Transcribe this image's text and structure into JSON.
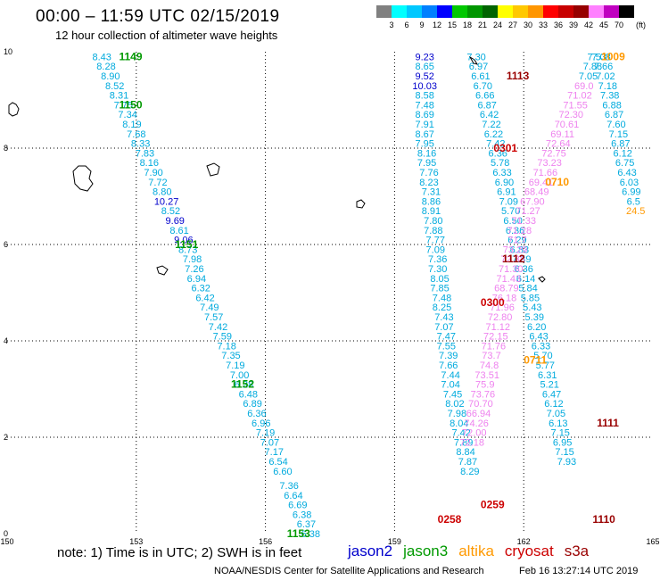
{
  "title": "00:00 – 11:59 UTC 02/15/2019",
  "subtitle": "12 hour collection of altimeter wave heights",
  "colorbar": {
    "unit": "(ft)",
    "ticks": [
      "3",
      "6",
      "9",
      "12",
      "15",
      "18",
      "21",
      "24",
      "27",
      "30",
      "33",
      "36",
      "39",
      "42",
      "45",
      "70"
    ],
    "colors": [
      "#808080",
      "#00ffff",
      "#00c8ff",
      "#0080ff",
      "#0000ff",
      "#00c800",
      "#009600",
      "#006400",
      "#ffff00",
      "#ffc800",
      "#ff9600",
      "#ff0000",
      "#c80000",
      "#960000",
      "#ff80ff",
      "#c000c0",
      "#000000"
    ]
  },
  "note": "note:  1) Time is in UTC;  2) SWH is in feet",
  "credit": "NOAA/NESDIS Center for Satellite Applications and Research",
  "issued": "Feb 16 13:27:14 UTC 2019",
  "legend": [
    {
      "name": "jason2",
      "color": "#0000cc"
    },
    {
      "name": "jason3",
      "color": "#009900"
    },
    {
      "name": "altika",
      "color": "#ff9900"
    },
    {
      "name": "cryosat",
      "color": "#cc0000"
    },
    {
      "name": "s3a",
      "color": "#990000"
    }
  ],
  "axes": {
    "x_ticks": [
      "150",
      "153",
      "156",
      "159",
      "162",
      "165"
    ],
    "y_ticks": [
      "0",
      "2",
      "4",
      "6",
      "8",
      "10"
    ]
  },
  "chart_data": {
    "type": "scatter",
    "xlim": [
      150,
      165
    ],
    "ylim": [
      0,
      10
    ],
    "grid": true,
    "tracks": [
      {
        "points": [
          [
            152.2,
            9.9,
            "8.43"
          ],
          [
            152.3,
            9.7,
            "8.28"
          ],
          [
            152.4,
            9.5,
            "8.90"
          ],
          [
            152.5,
            9.3,
            "8.52"
          ],
          [
            152.6,
            9.1,
            "8.31"
          ],
          [
            152.7,
            8.9,
            "7.75"
          ],
          [
            152.8,
            8.7,
            "7.34"
          ],
          [
            152.9,
            8.5,
            "8.19"
          ],
          [
            153.0,
            8.3,
            "7.68"
          ],
          [
            153.1,
            8.1,
            "8.33"
          ],
          [
            153.2,
            7.9,
            "7.83"
          ],
          [
            153.3,
            7.7,
            "8.16"
          ],
          [
            153.4,
            7.5,
            "7.90"
          ],
          [
            153.5,
            7.3,
            "7.72"
          ],
          [
            153.6,
            7.1,
            "8.80"
          ],
          [
            153.7,
            6.9,
            "10.27"
          ],
          [
            153.8,
            6.7,
            "8.52"
          ],
          [
            153.9,
            6.5,
            "9.69"
          ],
          [
            154.0,
            6.3,
            "8.61"
          ],
          [
            154.1,
            6.1,
            "9.06"
          ],
          [
            154.2,
            5.9,
            "8.73"
          ],
          [
            154.3,
            5.7,
            "7.98"
          ],
          [
            154.35,
            5.5,
            "7.26"
          ],
          [
            154.4,
            5.3,
            "6.94"
          ],
          [
            154.5,
            5.1,
            "6.32"
          ],
          [
            154.6,
            4.9,
            "6.42"
          ],
          [
            154.7,
            4.7,
            "7.49"
          ],
          [
            154.8,
            4.5,
            "7.57"
          ],
          [
            154.9,
            4.3,
            "7.42"
          ],
          [
            155.0,
            4.1,
            "7.59"
          ],
          [
            155.1,
            3.9,
            "7.18"
          ],
          [
            155.2,
            3.7,
            "7.35"
          ],
          [
            155.3,
            3.5,
            "7.19"
          ],
          [
            155.4,
            3.3,
            "7.00"
          ],
          [
            155.5,
            3.1,
            "6.28"
          ],
          [
            155.6,
            2.9,
            "6.48"
          ],
          [
            155.7,
            2.7,
            "6.89"
          ],
          [
            155.8,
            2.5,
            "6.36"
          ],
          [
            155.9,
            2.3,
            "6.96"
          ],
          [
            156.0,
            2.1,
            "7.19"
          ],
          [
            156.1,
            1.9,
            "7.07"
          ],
          [
            156.2,
            1.7,
            "7.17"
          ],
          [
            156.3,
            1.5,
            "6.54"
          ],
          [
            156.4,
            1.3,
            "6.60"
          ],
          [
            156.55,
            1.0,
            "7.36"
          ],
          [
            156.65,
            0.8,
            "6.64"
          ],
          [
            156.75,
            0.6,
            "6.69"
          ],
          [
            156.85,
            0.4,
            "6.38"
          ],
          [
            156.95,
            0.2,
            "6.37"
          ],
          [
            157.05,
            0.0,
            "6.38"
          ]
        ]
      },
      {
        "points": [
          [
            159.7,
            9.9,
            "9.23"
          ],
          [
            159.7,
            9.7,
            "8.65"
          ],
          [
            159.7,
            9.5,
            "9.52"
          ],
          [
            159.7,
            9.3,
            "10.03"
          ],
          [
            159.7,
            9.1,
            "8.58"
          ],
          [
            159.7,
            8.9,
            "7.48"
          ],
          [
            159.7,
            8.7,
            "8.69"
          ],
          [
            159.7,
            8.5,
            "7.91"
          ],
          [
            159.7,
            8.3,
            "8.67"
          ],
          [
            159.7,
            8.1,
            "7.95"
          ],
          [
            159.75,
            7.9,
            "8.16"
          ],
          [
            159.75,
            7.7,
            "7.95"
          ],
          [
            159.8,
            7.5,
            "7.76"
          ],
          [
            159.8,
            7.3,
            "8.23"
          ],
          [
            159.85,
            7.1,
            "7.31"
          ],
          [
            159.85,
            6.9,
            "8.86"
          ],
          [
            159.85,
            6.7,
            "8.91"
          ],
          [
            159.9,
            6.5,
            "7.80"
          ],
          [
            159.9,
            6.3,
            "7.88"
          ],
          [
            159.95,
            6.1,
            "7.77"
          ],
          [
            159.95,
            5.9,
            "7.09"
          ],
          [
            160.0,
            5.7,
            "7.36"
          ],
          [
            160.0,
            5.5,
            "7.30"
          ],
          [
            160.05,
            5.3,
            "8.05"
          ],
          [
            160.05,
            5.1,
            "7.85"
          ],
          [
            160.1,
            4.9,
            "7.48"
          ],
          [
            160.1,
            4.7,
            "8.25"
          ],
          [
            160.15,
            4.5,
            "7.43"
          ],
          [
            160.15,
            4.3,
            "7.07"
          ],
          [
            160.2,
            4.1,
            "7.47"
          ],
          [
            160.2,
            3.9,
            "7.55"
          ],
          [
            160.25,
            3.7,
            "7.39"
          ],
          [
            160.25,
            3.5,
            "7.66"
          ],
          [
            160.3,
            3.3,
            "7.44"
          ],
          [
            160.3,
            3.1,
            "7.04"
          ],
          [
            160.35,
            2.9,
            "7.45"
          ],
          [
            160.4,
            2.7,
            "8.02"
          ],
          [
            160.45,
            2.5,
            "7.98"
          ],
          [
            160.5,
            2.3,
            "8.04"
          ],
          [
            160.55,
            2.1,
            "7.42"
          ],
          [
            160.6,
            1.9,
            "7.89"
          ],
          [
            160.65,
            1.7,
            "8.84"
          ],
          [
            160.7,
            1.5,
            "7.87"
          ],
          [
            160.75,
            1.3,
            "8.29"
          ]
        ]
      },
      {
        "points": [
          [
            160.9,
            9.9,
            "7.30"
          ],
          [
            160.95,
            9.7,
            "6.97"
          ],
          [
            161.0,
            9.5,
            "6.61"
          ],
          [
            161.05,
            9.3,
            "6.70"
          ],
          [
            161.1,
            9.1,
            "6.66"
          ],
          [
            161.15,
            8.9,
            "6.87"
          ],
          [
            161.2,
            8.7,
            "6.42"
          ],
          [
            161.25,
            8.5,
            "7.22"
          ],
          [
            161.3,
            8.3,
            "6.22"
          ],
          [
            161.35,
            8.1,
            "7.42"
          ],
          [
            161.4,
            7.9,
            "6.36"
          ],
          [
            161.45,
            7.7,
            "5.78"
          ],
          [
            161.5,
            7.5,
            "6.33"
          ],
          [
            161.55,
            7.3,
            "6.90"
          ],
          [
            161.6,
            7.1,
            "6.91"
          ],
          [
            161.65,
            6.9,
            "7.09"
          ],
          [
            161.7,
            6.7,
            "5.70"
          ],
          [
            161.75,
            6.5,
            "6.50"
          ],
          [
            161.8,
            6.3,
            "6.36"
          ],
          [
            161.85,
            6.1,
            "6.29"
          ],
          [
            161.9,
            5.9,
            "6.83"
          ],
          [
            161.95,
            5.7,
            "7.39"
          ],
          [
            162.0,
            5.5,
            "6.36"
          ],
          [
            162.05,
            5.3,
            "6.14"
          ],
          [
            162.1,
            5.1,
            "5.84"
          ],
          [
            162.15,
            4.9,
            "5.85"
          ],
          [
            162.2,
            4.7,
            "5.43"
          ],
          [
            162.25,
            4.5,
            "5.39"
          ],
          [
            162.3,
            4.3,
            "6.20"
          ],
          [
            162.35,
            4.1,
            "6.43"
          ],
          [
            162.4,
            3.9,
            "6.33"
          ],
          [
            162.45,
            3.7,
            "5.70"
          ],
          [
            162.5,
            3.5,
            "5.77"
          ],
          [
            162.55,
            3.3,
            "6.31"
          ],
          [
            162.6,
            3.1,
            "5.21"
          ],
          [
            162.65,
            2.9,
            "6.47"
          ],
          [
            162.7,
            2.7,
            "6.12"
          ],
          [
            162.75,
            2.5,
            "7.05"
          ],
          [
            162.8,
            2.3,
            "6.13"
          ],
          [
            162.85,
            2.1,
            "7.15"
          ],
          [
            162.9,
            1.9,
            "6.95"
          ],
          [
            162.95,
            1.7,
            "7.15"
          ],
          [
            163.0,
            1.5,
            "7.93"
          ]
        ]
      },
      {
        "points": [
          [
            163.8,
            9.9,
            "7.08"
          ],
          [
            163.85,
            9.7,
            "7.66"
          ],
          [
            163.9,
            9.5,
            "7.02"
          ],
          [
            163.95,
            9.3,
            "7.18"
          ],
          [
            164.0,
            9.1,
            "7.38"
          ],
          [
            164.05,
            8.9,
            "6.88"
          ],
          [
            164.1,
            8.7,
            "6.87"
          ],
          [
            164.15,
            8.5,
            "7.60"
          ],
          [
            164.2,
            8.3,
            "7.15"
          ],
          [
            164.25,
            8.1,
            "6.87"
          ],
          [
            164.3,
            7.9,
            "6.12"
          ],
          [
            164.35,
            7.7,
            "6.75"
          ],
          [
            164.4,
            7.5,
            "6.43"
          ],
          [
            164.45,
            7.3,
            "6.03"
          ],
          [
            164.5,
            7.1,
            "6.99"
          ],
          [
            164.55,
            6.9,
            "6.5"
          ],
          [
            164.6,
            6.7,
            "24.5"
          ]
        ]
      },
      {
        "points": [
          [
            163.7,
            9.9,
            "7.53"
          ],
          [
            163.6,
            9.7,
            "7.88"
          ],
          [
            163.5,
            9.5,
            "7.05"
          ],
          [
            163.4,
            9.3,
            "69.0"
          ],
          [
            163.3,
            9.1,
            "71.02"
          ],
          [
            163.2,
            8.9,
            "71.55"
          ],
          [
            163.1,
            8.7,
            "72.30"
          ],
          [
            163.0,
            8.5,
            "70.61"
          ],
          [
            162.9,
            8.3,
            "69.11"
          ],
          [
            162.8,
            8.1,
            "72.64"
          ],
          [
            162.7,
            7.9,
            "72.75"
          ],
          [
            162.6,
            7.7,
            "73.23"
          ],
          [
            162.5,
            7.5,
            "71.66"
          ],
          [
            162.4,
            7.3,
            "69.41"
          ],
          [
            162.3,
            7.1,
            "68.49"
          ],
          [
            162.2,
            6.9,
            "67.90"
          ],
          [
            162.1,
            6.7,
            "71.27"
          ],
          [
            162.0,
            6.5,
            "71.33"
          ],
          [
            161.9,
            6.3,
            "71.28"
          ],
          [
            161.85,
            6.1,
            "71.7"
          ],
          [
            161.8,
            5.9,
            "73.29"
          ],
          [
            161.75,
            5.7,
            "72.38"
          ],
          [
            161.7,
            5.5,
            "71.30"
          ],
          [
            161.65,
            5.3,
            "71.43"
          ],
          [
            161.6,
            5.1,
            "68.79"
          ],
          [
            161.55,
            4.9,
            "76.18"
          ],
          [
            161.5,
            4.7,
            "71.96"
          ],
          [
            161.45,
            4.5,
            "72.80"
          ],
          [
            161.4,
            4.3,
            "71.12"
          ],
          [
            161.35,
            4.1,
            "72.15"
          ],
          [
            161.3,
            3.9,
            "71.76"
          ],
          [
            161.25,
            3.7,
            "73.7"
          ],
          [
            161.2,
            3.5,
            "74.8"
          ],
          [
            161.15,
            3.3,
            "73.51"
          ],
          [
            161.1,
            3.1,
            "75.9"
          ],
          [
            161.05,
            2.9,
            "73.76"
          ],
          [
            161.0,
            2.7,
            "70.70"
          ],
          [
            160.95,
            2.5,
            "66.94"
          ],
          [
            160.9,
            2.3,
            "74.26"
          ],
          [
            160.85,
            2.1,
            "72.00"
          ],
          [
            160.8,
            1.9,
            "72.18"
          ]
        ]
      }
    ],
    "time_labels": [
      {
        "x": 152.6,
        "y": 9.9,
        "text": "1149",
        "sat": "jason3"
      },
      {
        "x": 152.6,
        "y": 8.9,
        "text": "1150",
        "sat": "jason3"
      },
      {
        "x": 153.9,
        "y": 6.0,
        "text": "1151",
        "sat": "jason3"
      },
      {
        "x": 155.2,
        "y": 3.1,
        "text": "1152",
        "sat": "jason3"
      },
      {
        "x": 156.5,
        "y": 0.0,
        "text": "1153",
        "sat": "jason3"
      },
      {
        "x": 163.8,
        "y": 9.9,
        "text": "1009",
        "sat": "altika"
      },
      {
        "x": 162.5,
        "y": 7.3,
        "text": "0710",
        "sat": "altika"
      },
      {
        "x": 162.0,
        "y": 3.6,
        "text": "0711",
        "sat": "altika"
      },
      {
        "x": 161.3,
        "y": 8.0,
        "text": "0301",
        "sat": "cryosat"
      },
      {
        "x": 161.0,
        "y": 4.8,
        "text": "0300",
        "sat": "cryosat"
      },
      {
        "x": 161.0,
        "y": 0.6,
        "text": "0259",
        "sat": "cryosat"
      },
      {
        "x": 160.0,
        "y": 0.3,
        "text": "0258",
        "sat": "cryosat"
      },
      {
        "x": 161.6,
        "y": 9.5,
        "text": "1113",
        "sat": "s3a"
      },
      {
        "x": 161.5,
        "y": 5.7,
        "text": "1112",
        "sat": "s3a"
      },
      {
        "x": 163.7,
        "y": 2.3,
        "text": "1111",
        "sat": "s3a"
      },
      {
        "x": 163.6,
        "y": 0.3,
        "text": "1110",
        "sat": "s3a"
      }
    ]
  }
}
